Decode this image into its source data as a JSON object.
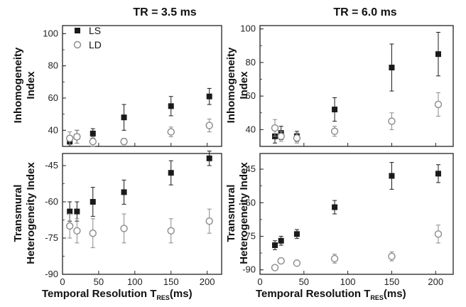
{
  "figure": {
    "col_titles": [
      "TR = 3.5 ms",
      "TR = 6.0 ms"
    ],
    "row_ylabels": [
      [
        "Inhomogeneity",
        "Index"
      ],
      [
        "Transmural",
        "Heterogeneity Index"
      ]
    ],
    "xlabel_main": "Temporal Resolution T",
    "xlabel_sub": "RES",
    "xlabel_unit": "(ms)",
    "legend": [
      {
        "label": "LS",
        "marker": "filled-square"
      },
      {
        "label": "LD",
        "marker": "open-circle"
      }
    ],
    "colors": {
      "ls": "#1a1a1a",
      "ld": "#8a8a8a",
      "axis": "#222222"
    }
  },
  "chart_data": [
    {
      "type": "scatter",
      "title": "TR = 3.5 ms",
      "ylabel": "Inhomogeneity Index",
      "xlim": [
        0,
        220
      ],
      "ylim": [
        30,
        105
      ],
      "xticks": [],
      "yticks": [
        40,
        60,
        80,
        100
      ],
      "series": [
        {
          "name": "LS",
          "x": [
            10,
            20,
            42,
            85,
            150,
            203
          ],
          "y": [
            33,
            36,
            38,
            48,
            55,
            61
          ],
          "err": [
            3,
            4,
            3,
            8,
            6,
            5
          ]
        },
        {
          "name": "LD",
          "x": [
            10,
            20,
            42,
            85,
            150,
            203
          ],
          "y": [
            35,
            36,
            33,
            33,
            39,
            43
          ],
          "err": [
            4,
            4,
            3,
            2,
            3,
            4
          ]
        }
      ]
    },
    {
      "type": "scatter",
      "title": "TR = 6.0 ms",
      "ylabel": "Inhomogeneity Index",
      "xlim": [
        0,
        220
      ],
      "ylim": [
        30,
        102
      ],
      "xticks": [],
      "yticks": [
        40,
        60,
        80,
        100
      ],
      "series": [
        {
          "name": "LS",
          "x": [
            17,
            24,
            42,
            85,
            150,
            203
          ],
          "y": [
            36,
            38,
            36,
            52,
            77,
            85
          ],
          "err": [
            4,
            4,
            3,
            7,
            14,
            13
          ]
        },
        {
          "name": "LD",
          "x": [
            17,
            24,
            42,
            85,
            150,
            203
          ],
          "y": [
            41,
            36,
            35,
            39,
            45,
            55
          ],
          "err": [
            5,
            3,
            3,
            3,
            5,
            7
          ]
        }
      ]
    },
    {
      "type": "scatter",
      "title": "",
      "ylabel": "Transmural Heterogeneity Index",
      "xlabel": "Temporal Resolution T_RES(ms)",
      "xlim": [
        0,
        220
      ],
      "ylim": [
        -90,
        -40
      ],
      "xticks": [
        0,
        50,
        100,
        150,
        200
      ],
      "yticks": [
        -45,
        -60,
        -75,
        -90
      ],
      "series": [
        {
          "name": "LS",
          "x": [
            10,
            20,
            42,
            85,
            150,
            203
          ],
          "y": [
            -64,
            -64,
            -60,
            -56,
            -48,
            -42
          ],
          "err": [
            4,
            4,
            6,
            5,
            5,
            3
          ]
        },
        {
          "name": "LD",
          "x": [
            10,
            20,
            42,
            85,
            150,
            203
          ],
          "y": [
            -70,
            -72,
            -73,
            -71,
            -72,
            -68
          ],
          "err": [
            5,
            5,
            6,
            6,
            5,
            5
          ]
        }
      ]
    },
    {
      "type": "scatter",
      "title": "",
      "ylabel": "Transmural Heterogeneity Index",
      "xlabel": "Temporal Resolution T_RES(ms)",
      "xlim": [
        0,
        220
      ],
      "ylim": [
        -92,
        -38
      ],
      "xticks": [
        0,
        50,
        100,
        150,
        200
      ],
      "yticks": [
        -45,
        -60,
        -75,
        -90
      ],
      "series": [
        {
          "name": "LS",
          "x": [
            17,
            24,
            42,
            85,
            150,
            203
          ],
          "y": [
            -79,
            -77,
            -74,
            -62,
            -48,
            -47
          ],
          "err": [
            2,
            2,
            2,
            3,
            6,
            4
          ]
        },
        {
          "name": "LD",
          "x": [
            17,
            24,
            42,
            85,
            150,
            203
          ],
          "y": [
            -89,
            -86,
            -87,
            -85,
            -84,
            -74
          ],
          "err": [
            1,
            1,
            1,
            2,
            2,
            4
          ]
        }
      ]
    }
  ]
}
